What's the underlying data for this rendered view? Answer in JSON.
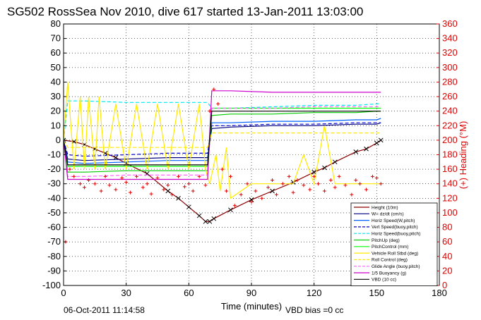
{
  "chart_data": {
    "type": "line",
    "title": "SG502 RossSea Nov 2010, dive 617 started 13-Jan-2011 13:03:00",
    "xlabel": "Time (minutes)",
    "ylabel_right": "(+) Heading (°M)",
    "xlim": [
      0,
      180
    ],
    "ylim_left": [
      -100,
      80
    ],
    "ylim_right": [
      0,
      360
    ],
    "x_ticks": [
      "0",
      "30",
      "60",
      "90",
      "120",
      "150",
      "180"
    ],
    "y_left_ticks": [
      "80",
      "70",
      "60",
      "50",
      "40",
      "30",
      "20",
      "10",
      "0",
      "-10",
      "-20",
      "-30",
      "-40",
      "-50",
      "-60",
      "-70",
      "-80",
      "-90",
      "-100"
    ],
    "y_right_ticks": [
      "360",
      "340",
      "320",
      "300",
      "280",
      "260",
      "240",
      "220",
      "200",
      "180",
      "160",
      "140",
      "120",
      "100",
      "80",
      "60",
      "40",
      "20",
      "0"
    ],
    "grid": true,
    "legend_position": "bottom-right",
    "footer_date": "06-Oct-2011 11:14:58",
    "footer_note": "VBD bias =0 cc",
    "colors": {
      "heading": "#e00000"
    },
    "series": [
      {
        "name": "Height (10m)",
        "color": "#8b0000",
        "style": "solid",
        "x": [
          0,
          5,
          10,
          15,
          20,
          25,
          30,
          40,
          50,
          55,
          60,
          65,
          68,
          70,
          72,
          80,
          90,
          100,
          110,
          120,
          125,
          130,
          140,
          145,
          150,
          152
        ],
        "y": [
          0,
          -1,
          -3,
          -6,
          -9,
          -12,
          -16,
          -23,
          -35,
          -40,
          -46,
          -52,
          -56,
          -56,
          -54,
          -48,
          -41,
          -35,
          -29,
          -22,
          -19,
          -15,
          -8,
          -6,
          -2,
          0
        ]
      },
      {
        "name": "W= dz/dt (cm/s)",
        "color": "#000080",
        "style": "solid",
        "x": [
          0,
          2,
          10,
          30,
          50,
          69,
          71,
          80,
          100,
          120,
          140,
          150,
          152
        ],
        "y": [
          0,
          -13,
          -14,
          -13,
          -12,
          -12,
          8,
          9,
          10,
          10,
          11,
          11,
          12
        ]
      },
      {
        "name": "Horiz Speed(W,pitch)",
        "color": "#0060ff",
        "style": "solid",
        "x": [
          0,
          2,
          10,
          30,
          50,
          69,
          71,
          80,
          100,
          120,
          140,
          150,
          152
        ],
        "y": [
          0,
          -15,
          -16,
          -15,
          -14,
          -14,
          12,
          12,
          13,
          13,
          14,
          14,
          15
        ]
      },
      {
        "name": "Vert Speed(buoy,pitch)",
        "color": "#0000cd",
        "style": "dashed",
        "x": [
          0,
          2,
          10,
          30,
          50,
          69,
          71,
          80,
          100,
          120,
          140,
          150,
          152
        ],
        "y": [
          0,
          -10,
          -11,
          -10,
          -9,
          -9,
          10,
          10,
          11,
          11,
          12,
          12,
          12
        ]
      },
      {
        "name": "Horiz Speed(buoy,pitch)",
        "color": "#00e5ee",
        "style": "dashed",
        "x": [
          0,
          2,
          10,
          30,
          50,
          69,
          71,
          80,
          100,
          120,
          140,
          150,
          152
        ],
        "y": [
          0,
          27,
          27,
          26,
          26,
          26,
          22,
          22,
          23,
          24,
          24,
          25,
          25
        ]
      },
      {
        "name": "PitchUp (deg)",
        "color": "#00cc00",
        "style": "solid",
        "x": [
          0,
          2,
          10,
          30,
          50,
          69,
          71,
          80,
          100,
          120,
          140,
          150,
          152
        ],
        "y": [
          0,
          -22,
          -22,
          -21,
          -21,
          -21,
          17,
          18,
          18,
          19,
          19,
          20,
          20
        ]
      },
      {
        "name": "PitchControl (mm)",
        "color": "#00ff00",
        "style": "solid",
        "x": [
          0,
          2,
          10,
          30,
          50,
          69,
          71,
          80,
          100,
          120,
          140,
          150,
          152
        ],
        "y": [
          0,
          -18,
          -18,
          -18,
          -18,
          -18,
          22,
          22,
          22,
          22,
          22,
          22,
          22
        ]
      },
      {
        "name": "Vehicle Roll Stbd (deg)",
        "color": "#ffea00",
        "style": "solid",
        "x": [
          0,
          2,
          5,
          8,
          10,
          12,
          15,
          17,
          20,
          25,
          30,
          35,
          40,
          45,
          50,
          55,
          60,
          65,
          68,
          70,
          73,
          75,
          78,
          80,
          90,
          100,
          110,
          115,
          120,
          125,
          130,
          140,
          150,
          152
        ],
        "y": [
          0,
          40,
          -20,
          30,
          -20,
          30,
          -20,
          30,
          -20,
          25,
          -20,
          25,
          -20,
          25,
          -20,
          25,
          -20,
          25,
          -20,
          -30,
          -10,
          -35,
          -5,
          -40,
          -30,
          -30,
          -30,
          -10,
          -30,
          10,
          -30,
          -30,
          -30,
          -30
        ]
      },
      {
        "name": "Roll Control (deg)",
        "color": "#ffe600",
        "style": "dashed",
        "x": [
          0,
          2,
          69,
          71,
          150,
          152
        ],
        "y": [
          0,
          -5,
          -5,
          5,
          5,
          5
        ]
      },
      {
        "name": "Glide Angle (buoy,pitch)",
        "color": "#ff66ff",
        "style": "dashed",
        "x": [
          0,
          2,
          10,
          30,
          50,
          69,
          71,
          80,
          100,
          120,
          140,
          150,
          152
        ],
        "y": [
          0,
          -25,
          -25,
          -24,
          -24,
          -24,
          22,
          22,
          22,
          23,
          23,
          23,
          23
        ]
      },
      {
        "name": "1/5 Buoyancy (g)",
        "color": "#cc00cc",
        "style": "solid",
        "x": [
          0,
          2,
          10,
          30,
          50,
          69,
          71,
          80,
          100,
          120,
          140,
          150,
          152
        ],
        "y": [
          0,
          -27,
          -27,
          -27,
          -27,
          -27,
          34,
          34,
          33,
          33,
          33,
          33,
          33
        ]
      },
      {
        "name": "VBD (10 cc)",
        "color": "#000000",
        "style": "solid",
        "x": [
          0,
          2,
          10,
          30,
          50,
          69,
          71,
          80,
          100,
          120,
          140,
          150,
          152
        ],
        "y": [
          0,
          -17,
          -17,
          -17,
          -17,
          -17,
          20,
          20,
          20,
          20,
          20,
          20,
          20
        ]
      }
    ],
    "heading_points": {
      "name": "Heading",
      "axis": "right",
      "x": [
        1,
        3,
        5,
        8,
        10,
        12,
        15,
        18,
        20,
        22,
        25,
        28,
        30,
        32,
        35,
        38,
        40,
        42,
        45,
        48,
        50,
        52,
        55,
        58,
        60,
        62,
        65,
        68,
        70,
        72,
        74,
        76,
        78,
        80,
        82,
        85,
        88,
        90,
        92,
        95,
        98,
        100,
        102,
        105,
        108,
        110,
        112,
        115,
        118,
        120,
        122,
        125,
        128,
        130,
        132,
        135,
        138,
        140,
        142,
        145,
        148,
        150,
        152
      ],
      "y": [
        60,
        160,
        150,
        140,
        135,
        145,
        140,
        130,
        150,
        138,
        132,
        148,
        142,
        128,
        150,
        135,
        140,
        126,
        148,
        132,
        138,
        125,
        150,
        136,
        140,
        130,
        150,
        138,
        240,
        270,
        250,
        160,
        130,
        150,
        110,
        125,
        140,
        115,
        130,
        120,
        135,
        145,
        125,
        140,
        150,
        128,
        145,
        138,
        132,
        150,
        140,
        130,
        145,
        135,
        150,
        138,
        125,
        145,
        140,
        132,
        150,
        148,
        140
      ]
    }
  }
}
